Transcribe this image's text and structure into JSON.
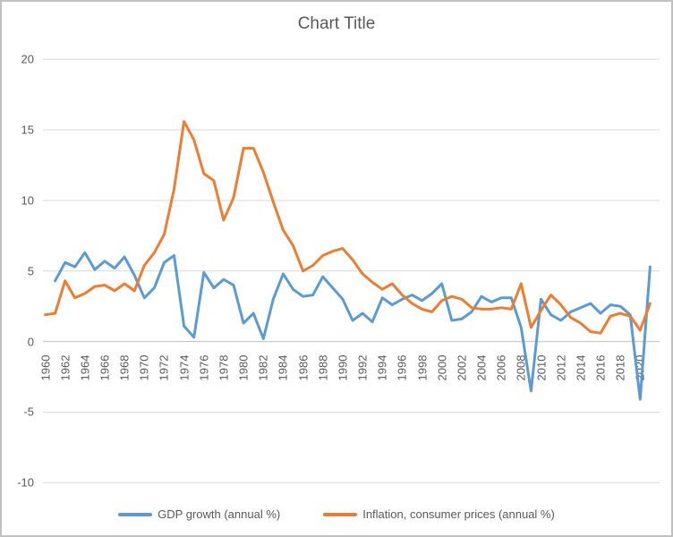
{
  "chart": {
    "title": "Chart Title"
  },
  "chart_data": {
    "type": "line",
    "title": "Chart Title",
    "x": [
      1960,
      1961,
      1962,
      1963,
      1964,
      1965,
      1966,
      1967,
      1968,
      1969,
      1970,
      1971,
      1972,
      1973,
      1974,
      1975,
      1976,
      1977,
      1978,
      1979,
      1980,
      1981,
      1982,
      1983,
      1984,
      1985,
      1986,
      1987,
      1988,
      1989,
      1990,
      1991,
      1992,
      1993,
      1994,
      1995,
      1996,
      1997,
      1998,
      1999,
      2000,
      2001,
      2002,
      2003,
      2004,
      2005,
      2006,
      2007,
      2008,
      2009,
      2010,
      2011,
      2012,
      2013,
      2014,
      2015,
      2016,
      2017,
      2018,
      2019,
      2020,
      2021
    ],
    "x_tick_labels": [
      "1960",
      "1962",
      "1964",
      "1966",
      "1968",
      "1970",
      "1972",
      "1974",
      "1976",
      "1978",
      "1980",
      "1982",
      "1984",
      "1986",
      "1988",
      "1990",
      "1992",
      "1994",
      "1996",
      "1998",
      "2000",
      "2002",
      "2004",
      "2006",
      "2008",
      "2010",
      "2012",
      "2014",
      "2016",
      "2018",
      "2020"
    ],
    "yticks": [
      20,
      15,
      10,
      5,
      0,
      -5,
      -10
    ],
    "ylim": [
      -10,
      20
    ],
    "grid": true,
    "legend_position": "bottom",
    "background": "#ffffff",
    "gridline_color": "#d9d9d9",
    "axis_line_color": "#bfbfbf",
    "text_color": "#595959",
    "series": [
      {
        "name": "GDP growth (annual %)",
        "color": "#5b9bd5",
        "values": [
          null,
          4.3,
          5.6,
          5.3,
          6.3,
          5.1,
          5.7,
          5.2,
          6.0,
          4.7,
          3.1,
          3.8,
          5.6,
          6.1,
          1.1,
          0.3,
          4.9,
          3.8,
          4.4,
          4.0,
          1.3,
          2.0,
          0.2,
          3.0,
          4.8,
          3.7,
          3.2,
          3.3,
          4.6,
          3.8,
          3.0,
          1.5,
          2.0,
          1.4,
          3.1,
          2.6,
          3.0,
          3.3,
          2.9,
          3.4,
          4.1,
          1.5,
          1.6,
          2.1,
          3.2,
          2.8,
          3.1,
          3.1,
          1.0,
          -3.5,
          3.0,
          1.9,
          1.5,
          2.1,
          2.4,
          2.7,
          2.0,
          2.6,
          2.5,
          1.9,
          -4.1,
          5.3
        ]
      },
      {
        "name": "Inflation, consumer prices (annual %)",
        "color": "#ed7d31",
        "values": [
          1.9,
          2.0,
          4.3,
          3.1,
          3.4,
          3.9,
          4.0,
          3.6,
          4.1,
          3.6,
          5.4,
          6.3,
          7.6,
          10.8,
          15.6,
          14.3,
          11.9,
          11.4,
          8.6,
          10.2,
          13.7,
          13.7,
          12.0,
          9.9,
          7.9,
          6.8,
          5.0,
          5.4,
          6.1,
          6.4,
          6.6,
          5.8,
          4.8,
          4.2,
          3.7,
          4.1,
          3.3,
          2.7,
          2.3,
          2.1,
          2.9,
          3.2,
          3.0,
          2.4,
          2.3,
          2.3,
          2.4,
          2.3,
          4.1,
          1.0,
          2.2,
          3.3,
          2.6,
          1.7,
          1.3,
          0.7,
          0.6,
          1.8,
          2.0,
          1.8,
          0.8,
          2.7
        ]
      }
    ]
  }
}
